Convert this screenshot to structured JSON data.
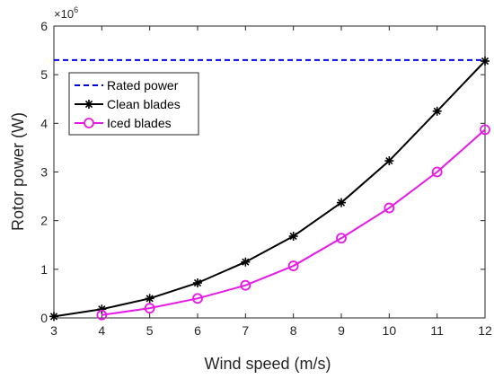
{
  "chart_data": {
    "type": "line",
    "xlabel": "Wind speed (m/s)",
    "ylabel": "Rotor power (W)",
    "y_exponent_base": "×10",
    "y_exponent_power": "6",
    "xlim": [
      3,
      12
    ],
    "ylim": [
      0,
      6
    ],
    "xticks": [
      "3",
      "4",
      "5",
      "6",
      "7",
      "8",
      "9",
      "10",
      "11",
      "12"
    ],
    "yticks": [
      "0",
      "1",
      "2",
      "3",
      "4",
      "5",
      "6"
    ],
    "grid": false,
    "legend_position": "top-left",
    "series": [
      {
        "name": "Rated power",
        "color": "#0000e6",
        "style": "dashed",
        "marker": "none",
        "x": [
          3,
          12
        ],
        "y": [
          5.3,
          5.3
        ]
      },
      {
        "name": "Clean blades",
        "color": "#000000",
        "style": "solid",
        "marker": "asterisk",
        "x": [
          3,
          4,
          5,
          6,
          7,
          8,
          9,
          10,
          11,
          12
        ],
        "y": [
          0.03,
          0.18,
          0.4,
          0.72,
          1.15,
          1.68,
          2.37,
          3.23,
          4.25,
          5.28
        ]
      },
      {
        "name": "Iced blades",
        "color": "#e619e6",
        "style": "solid",
        "marker": "circle",
        "x": [
          4,
          5,
          6,
          7,
          8,
          9,
          10,
          11,
          12
        ],
        "y": [
          0.06,
          0.2,
          0.4,
          0.67,
          1.07,
          1.64,
          2.26,
          3.0,
          3.87
        ]
      }
    ]
  }
}
